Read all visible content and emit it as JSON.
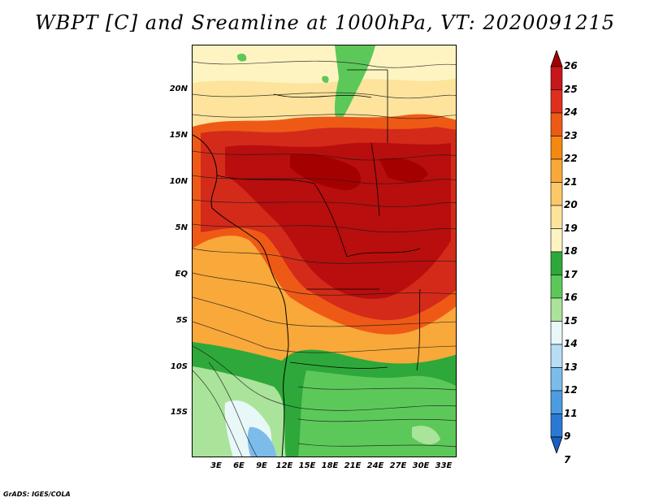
{
  "title": "WBPT [C] and Sreamline at 1000hPa, VT: 2020091215",
  "footer": "GrADS: IGES/COLA",
  "map": {
    "variable": "WBPT [C]",
    "overlay": "Streamline",
    "level": "1000hPa",
    "valid_time": "2020091215",
    "lat_labels": [
      "20N",
      "15N",
      "10N",
      "5N",
      "EQ",
      "5S",
      "10S",
      "15S"
    ],
    "lon_labels": [
      "3E",
      "6E",
      "9E",
      "12E",
      "15E",
      "18E",
      "21E",
      "24E",
      "27E",
      "30E",
      "33E"
    ]
  },
  "colorbar": {
    "levels": [
      "26",
      "25",
      "24",
      "23",
      "22",
      "21",
      "20",
      "19",
      "18",
      "17",
      "16",
      "15",
      "14",
      "13",
      "12",
      "11",
      "9",
      "7"
    ],
    "colors": [
      "#a50000",
      "#c8161a",
      "#e0301d",
      "#ee5a16",
      "#f58810",
      "#f9a83a",
      "#fbc869",
      "#fde39c",
      "#fef4c2",
      "#2ea83a",
      "#5dc85a",
      "#aae39a",
      "#e8f7f7",
      "#b8ddf5",
      "#7cbcea",
      "#4d9be0",
      "#2a7ad4",
      "#1a5fc8"
    ]
  }
}
